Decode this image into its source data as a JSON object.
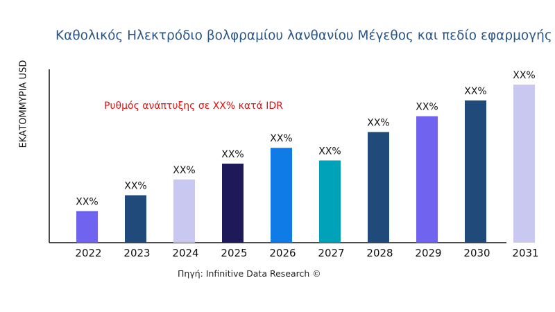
{
  "chart_data": {
    "type": "bar",
    "title": "Καθολικός Ηλεκτρόδιο βολφραμίου λανθανίου Μέγεθος και πεδίο εφαρμογής",
    "xlabel": "",
    "ylabel": "ΕΚΑΤΟΜΜΥΡΙΑ USD",
    "categories": [
      "2022",
      "2023",
      "2024",
      "2025",
      "2026",
      "2027",
      "2028",
      "2029",
      "2030",
      "2031"
    ],
    "values": [
      20,
      30,
      40,
      50,
      60,
      52,
      70,
      80,
      90,
      100
    ],
    "data_labels": [
      "XX%",
      "XX%",
      "XX%",
      "XX%",
      "XX%",
      "XX%",
      "XX%",
      "XX%",
      "XX%",
      "XX%"
    ],
    "colors": [
      "#6f63f0",
      "#1f4a7a",
      "#c8c8f0",
      "#1e1a5a",
      "#0e7be6",
      "#00a2b9",
      "#1f4a7a",
      "#6f63f0",
      "#1f4a7a",
      "#c8c8f0"
    ],
    "ylim": [
      0,
      110
    ],
    "grid": false,
    "annotation": "Ρυθμός ανάπτυξης σε XX% κατά IDR",
    "source": "Πηγή: Infinitive Data Research ©"
  }
}
